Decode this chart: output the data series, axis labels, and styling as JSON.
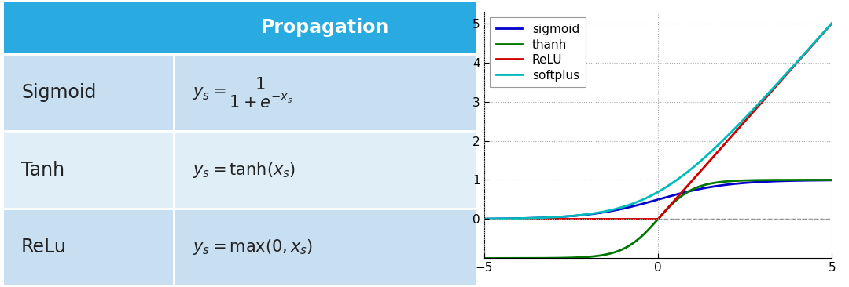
{
  "table": {
    "header_bg": "#29ABE2",
    "row_bg_1": "#C8DFF2",
    "row_bg_2": "#E0EEF8",
    "header_text": "Propagation",
    "header_text_color": "#FFFFFF",
    "rows": [
      {
        "name": "Sigmoid",
        "formula": "$y_s = \\dfrac{1}{1+e^{-x_s}}$"
      },
      {
        "name": "Tanh",
        "formula": "$y_s = \\tanh(x_s)$"
      },
      {
        "name": "ReLu",
        "formula": "$y_s = \\max(0, x_s)$"
      }
    ]
  },
  "plot": {
    "xlim": [
      -5,
      5
    ],
    "ylim": [
      -1.0,
      5.3
    ],
    "yticks": [
      0,
      1,
      2,
      3,
      4,
      5
    ],
    "xticks": [
      -5,
      0,
      5
    ],
    "lines": [
      {
        "label": "sigmoid",
        "color": "#0000CC",
        "linewidth": 2.0
      },
      {
        "label": "thanh",
        "color": "#007700",
        "linewidth": 2.0
      },
      {
        "label": "ReLU",
        "color": "#CC0000",
        "linewidth": 2.0
      },
      {
        "label": "softplus",
        "color": "#00BBBB",
        "linewidth": 2.0
      }
    ],
    "grid_color": "#AAAAAA",
    "dashed_line_color": "#888888",
    "background_color": "#FFFFFF"
  }
}
